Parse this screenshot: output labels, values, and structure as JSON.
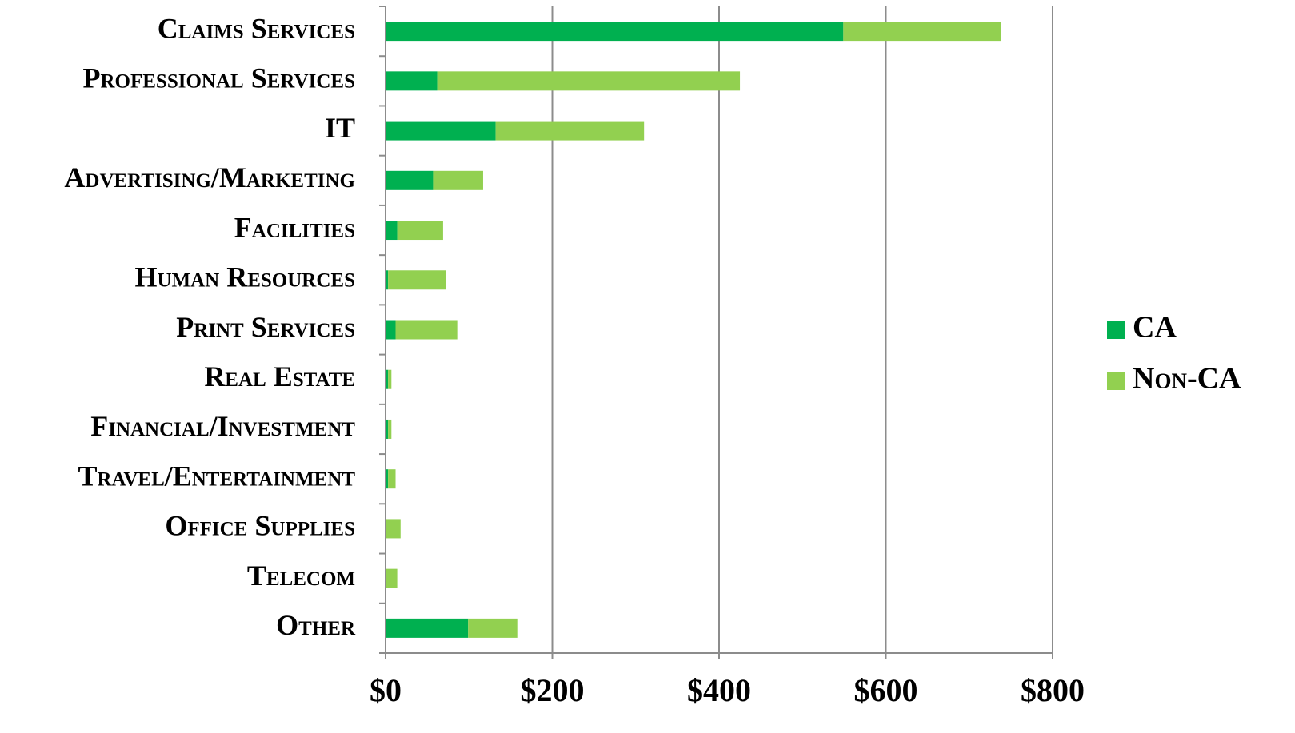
{
  "chart_data": {
    "type": "stacked_barh",
    "categories": [
      "Claims Services",
      "Professional Services",
      "IT",
      "Advertising/Marketing",
      "Facilities",
      "Human Resources",
      "Print Services",
      "Real Estate",
      "Financial/Investment",
      "Travel/Entertainment",
      "Office Supplies",
      "Telecom",
      "Other"
    ],
    "series": [
      {
        "name": "CA",
        "color": "#00b050",
        "values": [
          549,
          62,
          132,
          57,
          14,
          3,
          12,
          3,
          3,
          3,
          0,
          0,
          99
        ]
      },
      {
        "name": "Non-CA",
        "color": "#92d050",
        "values": [
          189,
          363,
          178,
          60,
          55,
          69,
          74,
          4,
          4,
          9,
          18,
          14,
          59
        ]
      }
    ],
    "xlim": [
      0,
      800
    ],
    "xticks": [
      {
        "value": 0,
        "label": "$0"
      },
      {
        "value": 200,
        "label": "$200"
      },
      {
        "value": 400,
        "label": "$400"
      },
      {
        "value": 600,
        "label": "$600"
      },
      {
        "value": 800,
        "label": "$800"
      }
    ],
    "grid": true,
    "legend": "right"
  }
}
